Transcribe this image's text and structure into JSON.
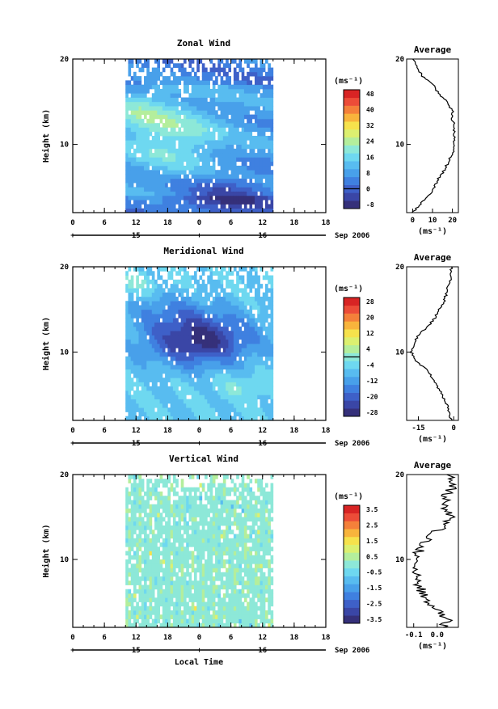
{
  "chart_data": [
    {
      "type": "heatmap",
      "panel": "zonal",
      "title": "Zonal Wind",
      "ylabel": "Height (km)",
      "yticks": [
        "20",
        "10"
      ],
      "ylim": [
        2,
        20
      ],
      "xticks": [
        "0",
        "6",
        "12",
        "18",
        "0",
        "6",
        "12",
        "18"
      ],
      "xlim": [
        0,
        48
      ],
      "data_x_range": [
        10,
        38
      ],
      "date_labels": [
        "15",
        "16"
      ],
      "date_suffix": "Sep 2006",
      "unit_label": "(ms⁻¹)",
      "colorbar": {
        "levels": [
          -8,
          -4,
          0,
          4,
          8,
          12,
          16,
          20,
          24,
          28,
          32,
          36,
          40,
          44,
          48
        ],
        "tick_labels": [
          "48",
          "40",
          "32",
          "24",
          "16",
          "8",
          "0",
          "-8"
        ],
        "zero_line": 0
      },
      "average": {
        "title": "Average",
        "xticks": [
          "0",
          "10",
          "20"
        ],
        "xlim": [
          -3,
          23
        ],
        "yticks": [
          "20",
          "10"
        ],
        "unit_label": "(ms⁻¹)",
        "heights": [
          2,
          3,
          4,
          5,
          6,
          7,
          8,
          9,
          10,
          11,
          12,
          13,
          14,
          15,
          16,
          17,
          18,
          19,
          20
        ],
        "values": [
          0,
          4,
          8,
          11,
          13,
          16,
          18,
          20,
          21,
          21,
          21,
          20,
          20,
          17,
          13,
          10,
          5,
          2,
          0
        ]
      }
    },
    {
      "type": "heatmap",
      "panel": "meridional",
      "title": "Meridional Wind",
      "ylabel": "Height (km)",
      "yticks": [
        "20",
        "10"
      ],
      "ylim": [
        2,
        20
      ],
      "xticks": [
        "0",
        "6",
        "12",
        "18",
        "0",
        "6",
        "12",
        "18"
      ],
      "xlim": [
        0,
        48
      ],
      "data_x_range": [
        10,
        38
      ],
      "date_labels": [
        "15",
        "16"
      ],
      "date_suffix": "Sep 2006",
      "unit_label": "(ms⁻¹)",
      "colorbar": {
        "levels": [
          -28,
          -24,
          -20,
          -16,
          -12,
          -8,
          -4,
          0,
          4,
          8,
          12,
          16,
          20,
          24,
          28
        ],
        "tick_labels": [
          "28",
          "20",
          "12",
          "4",
          "-4",
          "-12",
          "-20",
          "-28"
        ],
        "zero_line": 0
      },
      "average": {
        "title": "Average",
        "xticks": [
          "-15",
          "0"
        ],
        "xlim": [
          -20,
          2
        ],
        "yticks": [
          "20",
          "10"
        ],
        "unit_label": "(ms⁻¹)",
        "heights": [
          2,
          3,
          4,
          5,
          6,
          7,
          8,
          9,
          10,
          11,
          12,
          13,
          14,
          15,
          16,
          17,
          18,
          19,
          20
        ],
        "values": [
          -1,
          -2,
          -3,
          -5,
          -7,
          -9,
          -12,
          -16,
          -18,
          -17,
          -15,
          -11,
          -8,
          -6,
          -4,
          -3,
          -2,
          -1,
          -1
        ]
      }
    },
    {
      "type": "heatmap",
      "panel": "vertical",
      "title": "Vertical Wind",
      "ylabel": "Height (km)",
      "yticks": [
        "20",
        "10"
      ],
      "ylim": [
        2,
        20
      ],
      "xticks": [
        "0",
        "6",
        "12",
        "18",
        "0",
        "6",
        "12",
        "18"
      ],
      "xlim": [
        0,
        48
      ],
      "data_x_range": [
        10,
        38
      ],
      "date_labels": [
        "15",
        "16"
      ],
      "date_suffix": "Sep 2006",
      "unit_label": "(ms⁻¹)",
      "xlabel": "Local Time",
      "colorbar": {
        "levels": [
          -3.5,
          -3,
          -2.5,
          -2,
          -1.5,
          -1,
          -0.5,
          0,
          0.5,
          1,
          1.5,
          2,
          2.5,
          3,
          3.5
        ],
        "tick_labels": [
          "3.5",
          "2.5",
          "1.5",
          "0.5",
          "-0.5",
          "-1.5",
          "-2.5",
          "-3.5"
        ],
        "zero_line": null
      },
      "average": {
        "title": "Average",
        "xticks": [
          "-0.1",
          "0.0"
        ],
        "xlim": [
          -0.13,
          0.09
        ],
        "yticks": [
          "20",
          "10"
        ],
        "unit_label": "(ms⁻¹)",
        "heights": [
          2,
          3,
          4,
          5,
          6,
          7,
          8,
          9,
          10,
          11,
          12,
          13,
          14,
          15,
          16,
          17,
          18,
          19,
          20
        ],
        "values": [
          0.02,
          0.05,
          0.0,
          -0.04,
          -0.06,
          -0.08,
          -0.09,
          -0.1,
          -0.1,
          -0.08,
          -0.05,
          -0.02,
          0.03,
          0.06,
          0.02,
          0.03,
          0.05,
          0.07,
          0.04
        ]
      }
    }
  ],
  "colors": {
    "scale": [
      "#35307a",
      "#3a46a6",
      "#3e60c8",
      "#3f80e0",
      "#48a0ea",
      "#58bcf0",
      "#6ed8f0",
      "#8de8d8",
      "#b4ee9c",
      "#dcf070",
      "#f6e24c",
      "#f8b43c",
      "#f4803a",
      "#ec4c38",
      "#d82424"
    ]
  }
}
